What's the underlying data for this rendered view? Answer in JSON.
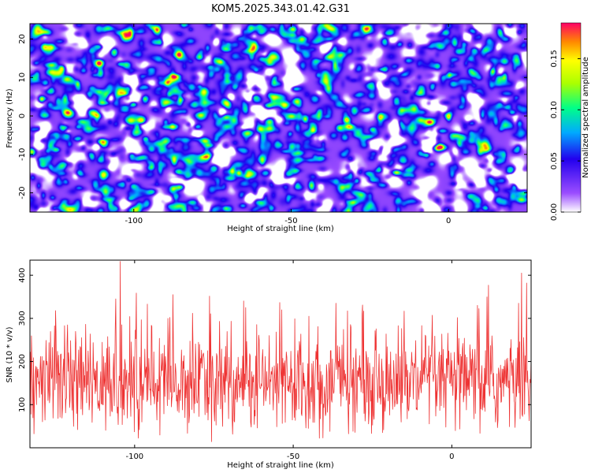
{
  "title": "KOM5.2025.343.01.42.G31",
  "chart_data": [
    {
      "type": "heatmap",
      "name": "spectrogram",
      "xlabel": "Height of straight line (km)",
      "ylabel": "Frequency (Hz)",
      "xlim": [
        -133,
        25
      ],
      "ylim": [
        -25,
        24
      ],
      "xticks": [
        -100,
        -50,
        0
      ],
      "yticks": [
        -20,
        -10,
        0,
        10,
        20
      ],
      "colorbar": {
        "label": "Normalized spectral amplitude",
        "range": [
          0,
          0.185
        ],
        "ticks": [
          0.0,
          0.05,
          0.1,
          0.15
        ],
        "tick_labels": [
          "0.00",
          "0.05",
          "0.10",
          "0.15"
        ]
      },
      "hotspots": [
        {
          "x": -6,
          "y": -1.5,
          "amp": 0.185
        },
        {
          "x": -9,
          "y": -1,
          "amp": 0.11
        },
        {
          "x": -55,
          "y": 5,
          "amp": 0.11
        },
        {
          "x": -52,
          "y": 3,
          "amp": 0.1
        },
        {
          "x": -50,
          "y": 0,
          "amp": 0.11
        },
        {
          "x": -51,
          "y": -15,
          "amp": 0.1
        },
        {
          "x": -110,
          "y": -7,
          "amp": 0.11
        },
        {
          "x": -113,
          "y": 1,
          "amp": 0.1
        },
        {
          "x": 8,
          "y": 11,
          "amp": 0.09
        },
        {
          "x": 16,
          "y": 10,
          "amp": 0.08
        },
        {
          "x": -34,
          "y": 16,
          "amp": 0.08
        },
        {
          "x": -82,
          "y": -12,
          "amp": 0.08
        },
        {
          "x": -121,
          "y": 10,
          "amp": 0.07
        },
        {
          "x": -9,
          "y": 6,
          "amp": 0.07
        },
        {
          "x": 2,
          "y": -5,
          "amp": 0.07
        },
        {
          "x": -90,
          "y": 3,
          "amp": 0.06
        },
        {
          "x": -65,
          "y": -9,
          "amp": 0.06
        },
        {
          "x": -25,
          "y": 8,
          "amp": 0.06
        },
        {
          "x": -30,
          "y": -20,
          "amp": 0.06
        },
        {
          "x": 18,
          "y": 20,
          "amp": 0.06
        }
      ]
    },
    {
      "type": "line",
      "name": "snr-trace",
      "xlabel": "Height of straight line (km)",
      "ylabel": "SNR (10 * v/v)",
      "xlim": [
        -133,
        25
      ],
      "ylim": [
        0,
        435
      ],
      "xticks": [
        -100,
        -50,
        0
      ],
      "yticks": [
        100,
        200,
        300,
        400
      ],
      "series": [
        {
          "name": "SNR",
          "color": "#ee3333",
          "baseline": 150,
          "noise_sd": 55,
          "min": 10,
          "samples": 1000,
          "peaks": [
            {
              "x": -104.5,
              "y": 432
            },
            {
              "x": -106,
              "y": 345
            },
            {
              "x": -96,
              "y": 333
            },
            {
              "x": -125,
              "y": 318
            },
            {
              "x": -88,
              "y": 355
            },
            {
              "x": -65,
              "y": 325
            },
            {
              "x": -45,
              "y": 305
            },
            {
              "x": -15,
              "y": 317
            },
            {
              "x": 8,
              "y": 330
            },
            {
              "x": 22,
              "y": 405
            },
            {
              "x": 23.5,
              "y": 382
            },
            {
              "x": 21,
              "y": 335
            }
          ]
        }
      ]
    }
  ],
  "colors": {
    "line": "#ee3333",
    "frame": "#000000"
  }
}
